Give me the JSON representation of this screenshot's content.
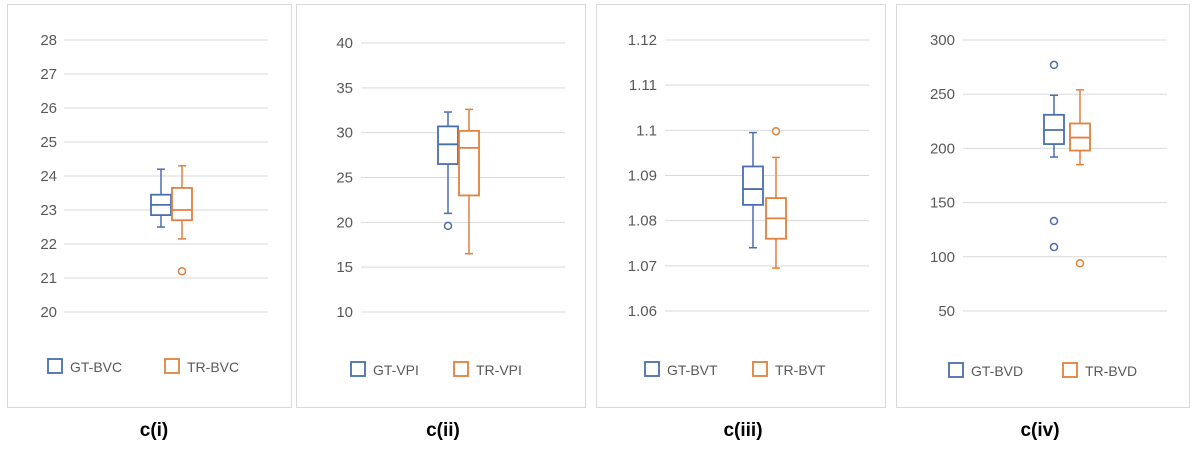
{
  "colors": {
    "series1": "#4a6eb0",
    "series2": "#e0813e",
    "grid": "#d9d9d9",
    "text": "#595959"
  },
  "chart_data": [
    {
      "type": "box",
      "caption": "c(i)",
      "yticks": [
        "28",
        "27",
        "26",
        "25",
        "24",
        "23",
        "22",
        "21",
        "20"
      ],
      "ylim": [
        20,
        28
      ],
      "legend": [
        "GT-BVC",
        "TR-BVC"
      ],
      "legend_position": "bottom",
      "series": [
        {
          "name": "GT-BVC",
          "min": 22.5,
          "q1": 22.85,
          "median": 23.15,
          "q3": 23.45,
          "max": 24.2,
          "outliers": []
        },
        {
          "name": "TR-BVC",
          "min": 22.15,
          "q1": 22.7,
          "median": 23.0,
          "q3": 23.65,
          "max": 24.3,
          "outliers": [
            21.2
          ]
        }
      ]
    },
    {
      "type": "box",
      "caption": "c(ii)",
      "yticks": [
        "40",
        "35",
        "30",
        "25",
        "20",
        "15",
        "10"
      ],
      "ylim": [
        10,
        40
      ],
      "legend": [
        "GT-VPI",
        "TR-VPI"
      ],
      "legend_position": "bottom",
      "series": [
        {
          "name": "GT-VPI",
          "min": 21.0,
          "q1": 26.5,
          "median": 28.7,
          "q3": 30.7,
          "max": 32.3,
          "outliers": [
            19.6
          ]
        },
        {
          "name": "TR-VPI",
          "min": 16.5,
          "q1": 23.0,
          "median": 28.3,
          "q3": 30.2,
          "max": 32.6,
          "outliers": []
        }
      ]
    },
    {
      "type": "box",
      "caption": "c(iii)",
      "yticks": [
        "1.12",
        "1.11",
        "1.1",
        "1.09",
        "1.08",
        "1.07",
        "1.06"
      ],
      "ylim": [
        1.06,
        1.12
      ],
      "legend": [
        "GT-BVT",
        "TR-BVT"
      ],
      "legend_position": "bottom",
      "series": [
        {
          "name": "GT-BVT",
          "min": 1.074,
          "q1": 1.0835,
          "median": 1.087,
          "q3": 1.092,
          "max": 1.0995,
          "outliers": []
        },
        {
          "name": "TR-BVT",
          "min": 1.0695,
          "q1": 1.076,
          "median": 1.0805,
          "q3": 1.085,
          "max": 1.094,
          "outliers": [
            1.0998
          ]
        }
      ]
    },
    {
      "type": "box",
      "caption": "c(iv)",
      "yticks": [
        "300",
        "250",
        "200",
        "150",
        "100",
        "50"
      ],
      "ylim": [
        50,
        300
      ],
      "legend": [
        "GT-BVD",
        "TR-BVD"
      ],
      "legend_position": "bottom",
      "series": [
        {
          "name": "GT-BVD",
          "min": 192,
          "q1": 204,
          "median": 217,
          "q3": 231,
          "max": 249,
          "outliers": [
            277,
            133,
            109
          ]
        },
        {
          "name": "TR-BVD",
          "min": 185,
          "q1": 198,
          "median": 210,
          "q3": 223,
          "max": 254,
          "outliers": [
            94
          ]
        }
      ]
    }
  ]
}
